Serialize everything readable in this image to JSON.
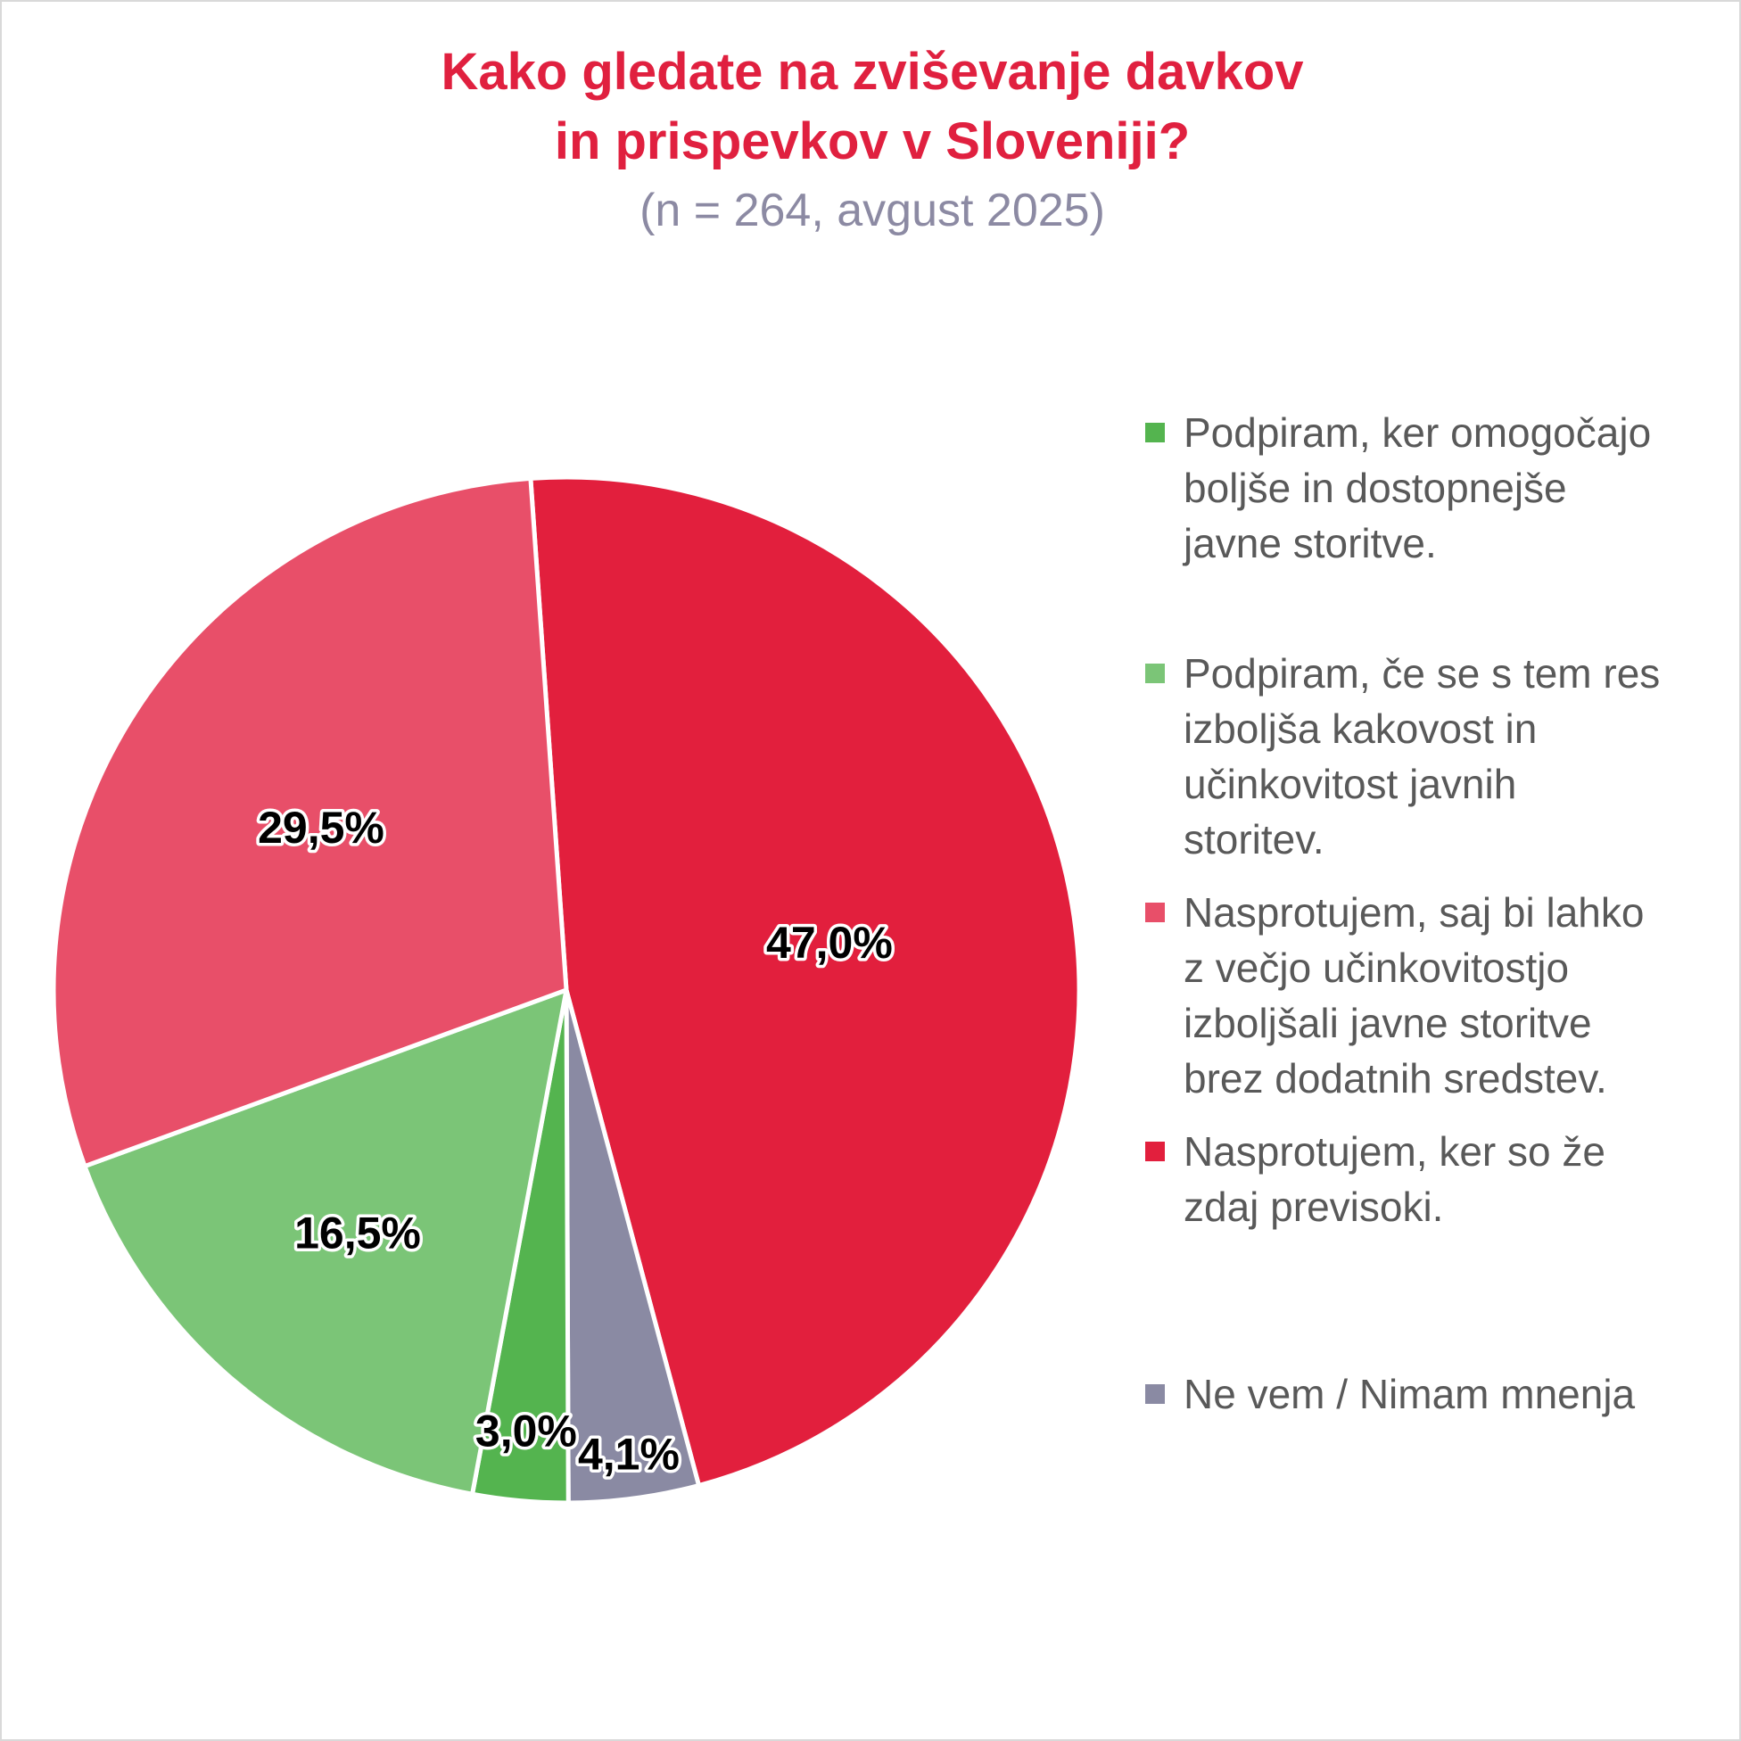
{
  "chart_data": {
    "type": "pie",
    "title_lines": [
      "Kako gledate na zviševanje davkov",
      "in prispevkov v Sloveniji?"
    ],
    "subtitle": "(n = 264, avgust 2025)",
    "legend_position": "right",
    "slices": [
      {
        "name": "Nasprotujem, ker so že zdaj previsoki.",
        "legend_text": "Nasprotujem, ker so že\nzdaj previsoki.",
        "value": 47.0,
        "label": "47,0%",
        "color": "#e21f3d"
      },
      {
        "name": "Ne vem / Nimam mnenja",
        "legend_text": "Ne vem / Nimam mnenja",
        "value": 4.1,
        "label": "4,1%",
        "color": "#8a8aa3"
      },
      {
        "name": "Podpiram, ker omogočajo boljše in dostopnejše javne storitve.",
        "legend_text": "Podpiram, ker omogočajo\nboljše in dostopnejše\njavne storitve.",
        "value": 3.0,
        "label": "3,0%",
        "color": "#54b44f"
      },
      {
        "name": "Podpiram, če se s tem res izboljša kakovost in učinkovitost javnih storitev.",
        "legend_text": "Podpiram, če se s tem res\nizboljša kakovost in\nučinkovitost javnih\nstoritev.",
        "value": 16.5,
        "label": "16,5%",
        "color": "#7bc577"
      },
      {
        "name": "Nasprotujem, saj bi lahko z večjo učinkovitostjo izboljšali javne storitve brez dodatnih sredstev.",
        "legend_text": "Nasprotujem, saj bi lahko\nz večjo učinkovitostjo\nizboljšali javne storitve\nbrez dodatnih sredstev.",
        "value": 29.5,
        "label": "29,5%",
        "color": "#e84f69"
      }
    ],
    "legend_order": [
      2,
      3,
      4,
      0,
      1
    ]
  }
}
